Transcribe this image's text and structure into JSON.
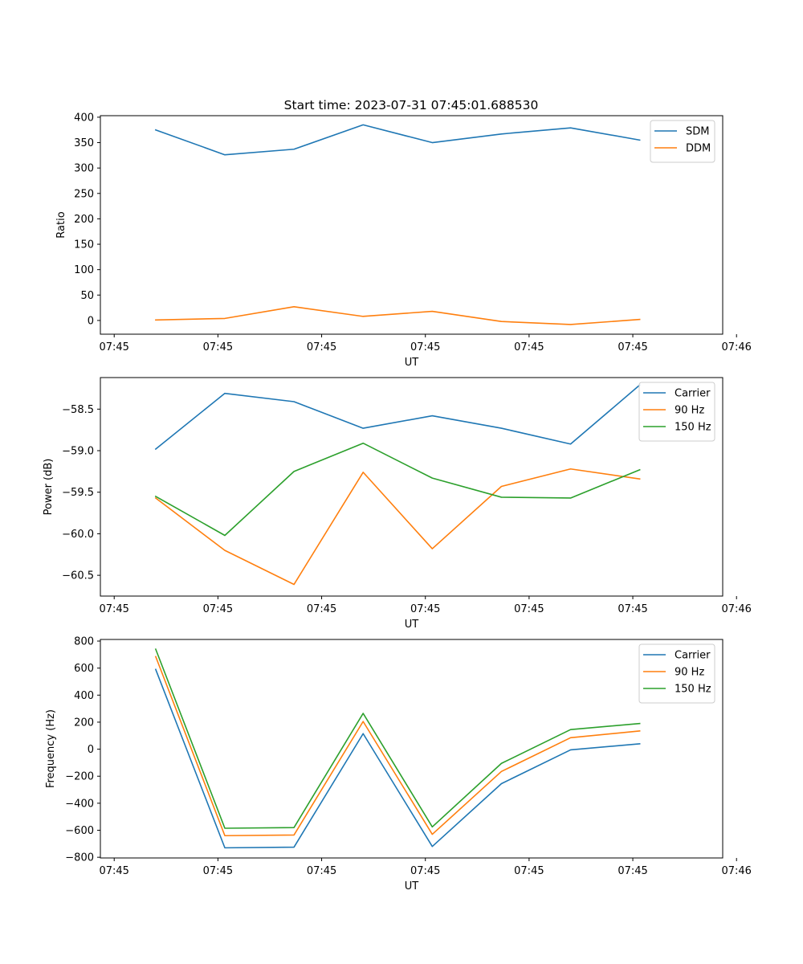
{
  "chart_data": [
    {
      "type": "line",
      "title": "Start time: 2023-07-31 07:45:01.688530",
      "xlabel": "UT",
      "ylabel": "Ratio",
      "x": [
        1,
        2,
        3,
        4,
        5,
        6,
        7,
        8
      ],
      "xlim": [
        0.2,
        9.2
      ],
      "xticks": [
        0.4,
        1.9,
        3.4,
        4.9,
        6.4,
        7.9,
        9.4
      ],
      "xtick_labels": [
        "07:45",
        "07:45",
        "07:45",
        "07:45",
        "07:45",
        "07:45",
        "07:46"
      ],
      "ylim": [
        -27,
        403
      ],
      "yticks": [
        0,
        50,
        100,
        150,
        200,
        250,
        300,
        350,
        400
      ],
      "ytick_labels": [
        "0",
        "50",
        "100",
        "150",
        "200",
        "250",
        "300",
        "350",
        "400"
      ],
      "legend_position": "top-right",
      "series": [
        {
          "name": "SDM",
          "color": "#1f77b4",
          "values": [
            375,
            326,
            337,
            385,
            350,
            367,
            379,
            355
          ]
        },
        {
          "name": "DDM",
          "color": "#ff7f0e",
          "values": [
            1,
            4,
            27,
            8,
            18,
            -2,
            -8,
            2
          ]
        }
      ]
    },
    {
      "type": "line",
      "title": "",
      "xlabel": "UT",
      "ylabel": "Power (dB)",
      "x": [
        1,
        2,
        3,
        4,
        5,
        6,
        7,
        8
      ],
      "xlim": [
        0.2,
        9.2
      ],
      "xticks": [
        0.4,
        1.9,
        3.4,
        4.9,
        6.4,
        7.9,
        9.4
      ],
      "xtick_labels": [
        "07:45",
        "07:45",
        "07:45",
        "07:45",
        "07:45",
        "07:45",
        "07:46"
      ],
      "ylim": [
        -60.75,
        -58.12
      ],
      "yticks": [
        -60.5,
        -60.0,
        -59.5,
        -59.0,
        -58.5
      ],
      "ytick_labels": [
        "−60.5",
        "−60.0",
        "−59.5",
        "−59.0",
        "−58.5"
      ],
      "legend_position": "top-right",
      "series": [
        {
          "name": "Carrier",
          "color": "#1f77b4",
          "values": [
            -58.98,
            -58.31,
            -58.41,
            -58.73,
            -58.58,
            -58.73,
            -58.92,
            -58.21
          ]
        },
        {
          "name": "90 Hz",
          "color": "#ff7f0e",
          "values": [
            -59.57,
            -60.2,
            -60.61,
            -59.26,
            -60.18,
            -59.43,
            -59.22,
            -59.34
          ]
        },
        {
          "name": "150 Hz",
          "color": "#2ca02c",
          "values": [
            -59.55,
            -60.02,
            -59.25,
            -58.91,
            -59.33,
            -59.56,
            -59.57,
            -59.23
          ]
        }
      ]
    },
    {
      "type": "line",
      "title": "",
      "xlabel": "UT",
      "ylabel": "Frequency (Hz)",
      "x": [
        1,
        2,
        3,
        4,
        5,
        6,
        7,
        8
      ],
      "xlim": [
        0.2,
        9.2
      ],
      "xticks": [
        0.4,
        1.9,
        3.4,
        4.9,
        6.4,
        7.9,
        9.4
      ],
      "xtick_labels": [
        "07:45",
        "07:45",
        "07:45",
        "07:45",
        "07:45",
        "07:45",
        "07:46"
      ],
      "ylim": [
        -805,
        812
      ],
      "yticks": [
        -800,
        -600,
        -400,
        -200,
        0,
        200,
        400,
        600,
        800
      ],
      "ytick_labels": [
        "−800",
        "−600",
        "−400",
        "−200",
        "0",
        "200",
        "400",
        "600",
        "800"
      ],
      "legend_position": "top-right",
      "series": [
        {
          "name": "Carrier",
          "color": "#1f77b4",
          "values": [
            590,
            -730,
            -725,
            115,
            -720,
            -255,
            -5,
            40
          ]
        },
        {
          "name": "90 Hz",
          "color": "#ff7f0e",
          "values": [
            685,
            -640,
            -635,
            205,
            -630,
            -165,
            85,
            135
          ]
        },
        {
          "name": "150 Hz",
          "color": "#2ca02c",
          "values": [
            740,
            -585,
            -580,
            265,
            -575,
            -105,
            145,
            190
          ]
        }
      ]
    }
  ]
}
